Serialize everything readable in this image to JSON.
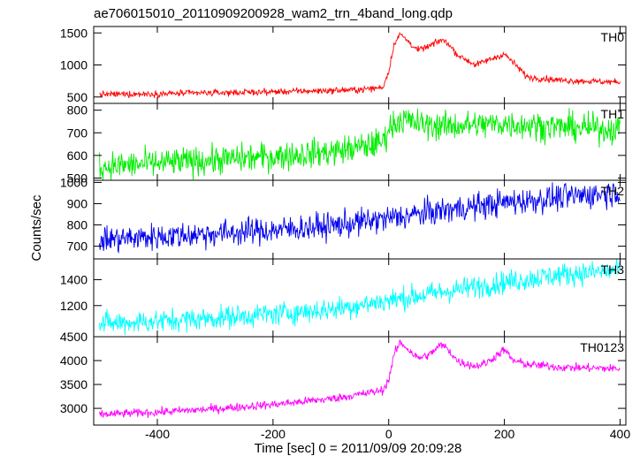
{
  "chart_data": {
    "type": "line",
    "title": "ae706015010_20110909200928_wam2_trn_4band_long.qdp",
    "xlabel": "Time [sec] 0 = 2011/09/09 20:09:28",
    "ylabel": "Counts/sec",
    "xlim": [
      -510,
      410
    ],
    "xticks": [
      -400,
      -200,
      0,
      200,
      400
    ],
    "grid": false,
    "panels": [
      {
        "name": "TH0",
        "color": "#ff0000",
        "ylim": [
          400,
          1600
        ],
        "yticks": [
          500,
          1000,
          1500
        ],
        "noise": 25,
        "profile_x": [
          -500,
          -400,
          -300,
          -200,
          -100,
          -50,
          -10,
          0,
          10,
          20,
          30,
          50,
          70,
          90,
          100,
          120,
          150,
          170,
          200,
          215,
          240,
          300,
          400
        ],
        "profile_y": [
          540,
          550,
          565,
          580,
          600,
          615,
          650,
          900,
          1350,
          1480,
          1400,
          1230,
          1290,
          1390,
          1360,
          1150,
          1000,
          1070,
          1170,
          1040,
          810,
          760,
          730
        ]
      },
      {
        "name": "TH1",
        "color": "#00ee00",
        "ylim": [
          490,
          830
        ],
        "yticks": [
          500,
          600,
          700,
          800
        ],
        "noise": 32,
        "profile_x": [
          -500,
          -400,
          -300,
          -200,
          -100,
          -40,
          -10,
          0,
          20,
          60,
          100,
          200,
          300,
          400
        ],
        "profile_y": [
          550,
          565,
          580,
          595,
          615,
          640,
          660,
          720,
          760,
          735,
          730,
          740,
          725,
          715
        ]
      },
      {
        "name": "TH2",
        "color": "#0000ee",
        "ylim": [
          640,
          1010
        ],
        "yticks": [
          700,
          800,
          900,
          1000
        ],
        "noise": 32,
        "profile_x": [
          -500,
          -400,
          -300,
          -200,
          -100,
          0,
          100,
          200,
          300,
          400
        ],
        "profile_y": [
          730,
          745,
          760,
          775,
          795,
          830,
          870,
          905,
          930,
          955
        ]
      },
      {
        "name": "TH3",
        "color": "#00ffff",
        "ylim": [
          960,
          1560
        ],
        "yticks": [
          1200,
          1400
        ],
        "noise": 45,
        "profile_x": [
          -500,
          -400,
          -300,
          -200,
          -100,
          0,
          100,
          200,
          300,
          400
        ],
        "profile_y": [
          1060,
          1080,
          1105,
          1135,
          1170,
          1240,
          1310,
          1380,
          1440,
          1470
        ]
      },
      {
        "name": "TH0123",
        "color": "#ff00ff",
        "ylim": [
          2650,
          4500
        ],
        "yticks": [
          3000,
          3500,
          4000,
          4500
        ],
        "noise": 45,
        "profile_x": [
          -500,
          -400,
          -300,
          -200,
          -100,
          -50,
          -10,
          0,
          10,
          20,
          30,
          50,
          70,
          90,
          100,
          120,
          150,
          170,
          200,
          215,
          240,
          300,
          400
        ],
        "profile_y": [
          2870,
          2920,
          2990,
          3080,
          3200,
          3290,
          3380,
          3600,
          4150,
          4380,
          4280,
          4050,
          4120,
          4330,
          4270,
          3980,
          3880,
          3960,
          4230,
          4000,
          3920,
          3860,
          3830
        ]
      }
    ]
  }
}
